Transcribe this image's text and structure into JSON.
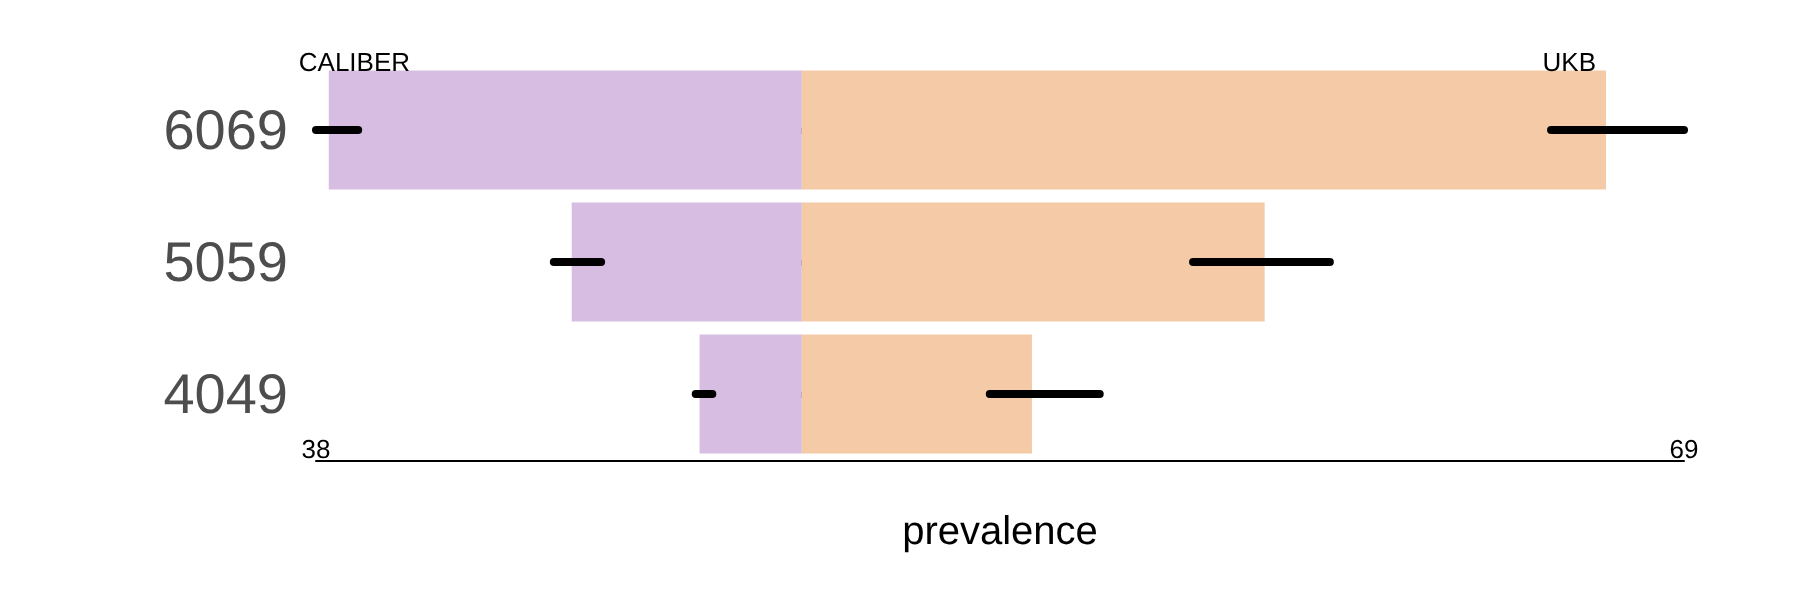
{
  "chart_data": {
    "type": "bar",
    "orientation": "horizontal",
    "stacked": true,
    "xlabel": "prevalence",
    "categories": [
      "6069",
      "5059",
      "4049"
    ],
    "series": [
      {
        "name": "CALIBER",
        "color": "#d7bde2",
        "values": [
          -37,
          -18,
          -8
        ],
        "errors": [
          [
            -38,
            -34.7
          ],
          [
            -19.4,
            -15.7
          ],
          [
            -8.3,
            -7
          ]
        ]
      },
      {
        "name": "UKB",
        "color": "#f5cba7",
        "values": [
          62.9,
          36.2,
          18
        ],
        "errors": [
          [
            58.6,
            69
          ],
          [
            30.6,
            41.3
          ],
          [
            14.7,
            23.3
          ]
        ]
      }
    ],
    "xlim": [
      -38,
      69
    ],
    "xticks": [
      {
        "value": -38,
        "label": "38"
      },
      69
    ]
  }
}
